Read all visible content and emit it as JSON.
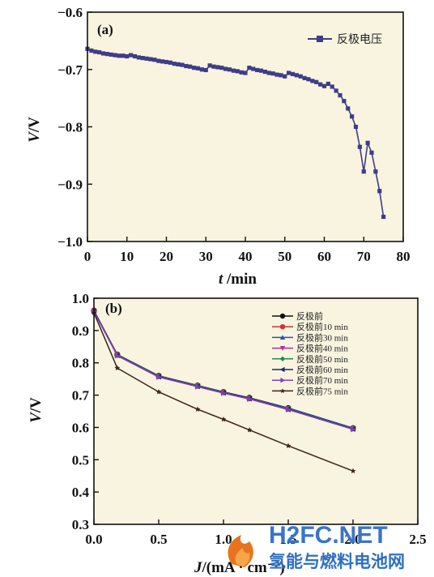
{
  "chart_data": [
    {
      "type": "line",
      "panel_label": "(a)",
      "xlabel": "t /min",
      "xlabel_italic": "t",
      "xlabel_rest": " /min",
      "ylabel": "V/V",
      "ylabel_italic": "V",
      "ylabel_rest": "/V",
      "xlim": [
        0,
        80
      ],
      "ylim": [
        -1.0,
        -0.6
      ],
      "xticks": [
        0,
        10,
        20,
        30,
        40,
        50,
        60,
        70,
        80
      ],
      "yticks": [
        -1.0,
        -0.9,
        -0.8,
        -0.7,
        -0.6
      ],
      "ytick_labels": [
        "−1.0",
        "−0.9",
        "−0.8",
        "−0.7",
        "−0.6"
      ],
      "background": "#f8f4e0",
      "legend_position": "top-right",
      "series": [
        {
          "name": "反极电压",
          "color": "#3f3d86",
          "marker": "square",
          "points": [
            [
              0,
              -0.664
            ],
            [
              1,
              -0.667
            ],
            [
              2,
              -0.669
            ],
            [
              3,
              -0.67
            ],
            [
              4,
              -0.672
            ],
            [
              5,
              -0.673
            ],
            [
              6,
              -0.674
            ],
            [
              7,
              -0.675
            ],
            [
              8,
              -0.676
            ],
            [
              9,
              -0.676
            ],
            [
              10,
              -0.677
            ],
            [
              11,
              -0.675
            ],
            [
              12,
              -0.677
            ],
            [
              13,
              -0.679
            ],
            [
              14,
              -0.68
            ],
            [
              15,
              -0.681
            ],
            [
              16,
              -0.682
            ],
            [
              17,
              -0.683
            ],
            [
              18,
              -0.685
            ],
            [
              19,
              -0.686
            ],
            [
              20,
              -0.687
            ],
            [
              21,
              -0.688
            ],
            [
              22,
              -0.69
            ],
            [
              23,
              -0.691
            ],
            [
              24,
              -0.692
            ],
            [
              25,
              -0.694
            ],
            [
              26,
              -0.695
            ],
            [
              27,
              -0.697
            ],
            [
              28,
              -0.698
            ],
            [
              29,
              -0.7
            ],
            [
              30,
              -0.701
            ],
            [
              31,
              -0.693
            ],
            [
              32,
              -0.695
            ],
            [
              33,
              -0.696
            ],
            [
              34,
              -0.697
            ],
            [
              35,
              -0.699
            ],
            [
              36,
              -0.7
            ],
            [
              37,
              -0.702
            ],
            [
              38,
              -0.703
            ],
            [
              39,
              -0.705
            ],
            [
              40,
              -0.706
            ],
            [
              41,
              -0.697
            ],
            [
              42,
              -0.699
            ],
            [
              43,
              -0.701
            ],
            [
              44,
              -0.702
            ],
            [
              45,
              -0.704
            ],
            [
              46,
              -0.706
            ],
            [
              47,
              -0.707
            ],
            [
              48,
              -0.709
            ],
            [
              49,
              -0.71
            ],
            [
              50,
              -0.712
            ],
            [
              51,
              -0.706
            ],
            [
              52,
              -0.708
            ],
            [
              53,
              -0.71
            ],
            [
              54,
              -0.712
            ],
            [
              55,
              -0.715
            ],
            [
              56,
              -0.717
            ],
            [
              57,
              -0.72
            ],
            [
              58,
              -0.722
            ],
            [
              59,
              -0.726
            ],
            [
              60,
              -0.729
            ],
            [
              61,
              -0.725
            ],
            [
              62,
              -0.73
            ],
            [
              63,
              -0.737
            ],
            [
              64,
              -0.745
            ],
            [
              65,
              -0.755
            ],
            [
              66,
              -0.768
            ],
            [
              67,
              -0.782
            ],
            [
              68,
              -0.8
            ],
            [
              69,
              -0.835
            ],
            [
              70,
              -0.878
            ],
            [
              71,
              -0.828
            ],
            [
              72,
              -0.845
            ],
            [
              73,
              -0.878
            ],
            [
              74,
              -0.912
            ],
            [
              75,
              -0.957
            ]
          ]
        }
      ]
    },
    {
      "type": "line",
      "panel_label": "(b)",
      "xlabel": "J/(mA · cm⁻²)",
      "xlabel_italic": "J",
      "xlabel_rest": "/(mA · cm⁻²)",
      "ylabel": "V/V",
      "ylabel_italic": "V",
      "ylabel_rest": "/V",
      "xlim": [
        0.0,
        2.5
      ],
      "ylim": [
        0.3,
        1.0
      ],
      "xticks": [
        0.0,
        0.5,
        1.0,
        1.5,
        2.0,
        2.5
      ],
      "xtick_labels": [
        "0.0",
        "0.5",
        "1.0",
        "1.5",
        "2.0",
        "2.5"
      ],
      "yticks": [
        0.3,
        0.4,
        0.5,
        0.6,
        0.7,
        0.8,
        0.9,
        1.0
      ],
      "ytick_labels": [
        "0.3",
        "0.4",
        "0.5",
        "0.6",
        "0.7",
        "0.8",
        "0.9",
        "1.0"
      ],
      "background": "#f8f4e0",
      "legend_position": "top-right",
      "x": [
        0.0,
        0.18,
        0.5,
        0.8,
        1.0,
        1.2,
        1.5,
        2.0
      ],
      "series": [
        {
          "name": "反极前",
          "color": "#111111",
          "marker": "circle",
          "values": [
            0.962,
            0.826,
            0.76,
            0.73,
            0.71,
            0.692,
            0.66,
            0.598
          ]
        },
        {
          "name": "反极前10 min",
          "color": "#d03030",
          "marker": "circle",
          "values": [
            0.961,
            0.825,
            0.759,
            0.729,
            0.709,
            0.69,
            0.658,
            0.597
          ]
        },
        {
          "name": "反极前30 min",
          "color": "#3050b0",
          "marker": "triangle",
          "values": [
            0.961,
            0.825,
            0.759,
            0.729,
            0.709,
            0.691,
            0.659,
            0.598
          ]
        },
        {
          "name": "反极前40 min",
          "color": "#b03090",
          "marker": "triangle-down",
          "values": [
            0.96,
            0.824,
            0.758,
            0.728,
            0.708,
            0.69,
            0.657,
            0.596
          ]
        },
        {
          "name": "反极前50 min",
          "color": "#208a50",
          "marker": "diamond",
          "values": [
            0.96,
            0.824,
            0.758,
            0.728,
            0.708,
            0.689,
            0.657,
            0.596
          ]
        },
        {
          "name": "反极前60 min",
          "color": "#1a2a6a",
          "marker": "triangle-left",
          "values": [
            0.96,
            0.823,
            0.757,
            0.727,
            0.707,
            0.689,
            0.656,
            0.595
          ]
        },
        {
          "name": "反极前70 min",
          "color": "#8040b0",
          "marker": "triangle-right",
          "values": [
            0.959,
            0.822,
            0.756,
            0.726,
            0.706,
            0.688,
            0.655,
            0.594
          ]
        },
        {
          "name": "反极前75 min",
          "color": "#3a2418",
          "marker": "star",
          "values": [
            0.955,
            0.784,
            0.71,
            0.656,
            0.625,
            0.592,
            0.543,
            0.465
          ]
        }
      ]
    }
  ],
  "watermark": {
    "brand_text": "H2FC.NET",
    "subtitle_text": "氢能与燃料电池网",
    "accent_color": "#e8731e",
    "brand_color": "#3a74c8"
  }
}
